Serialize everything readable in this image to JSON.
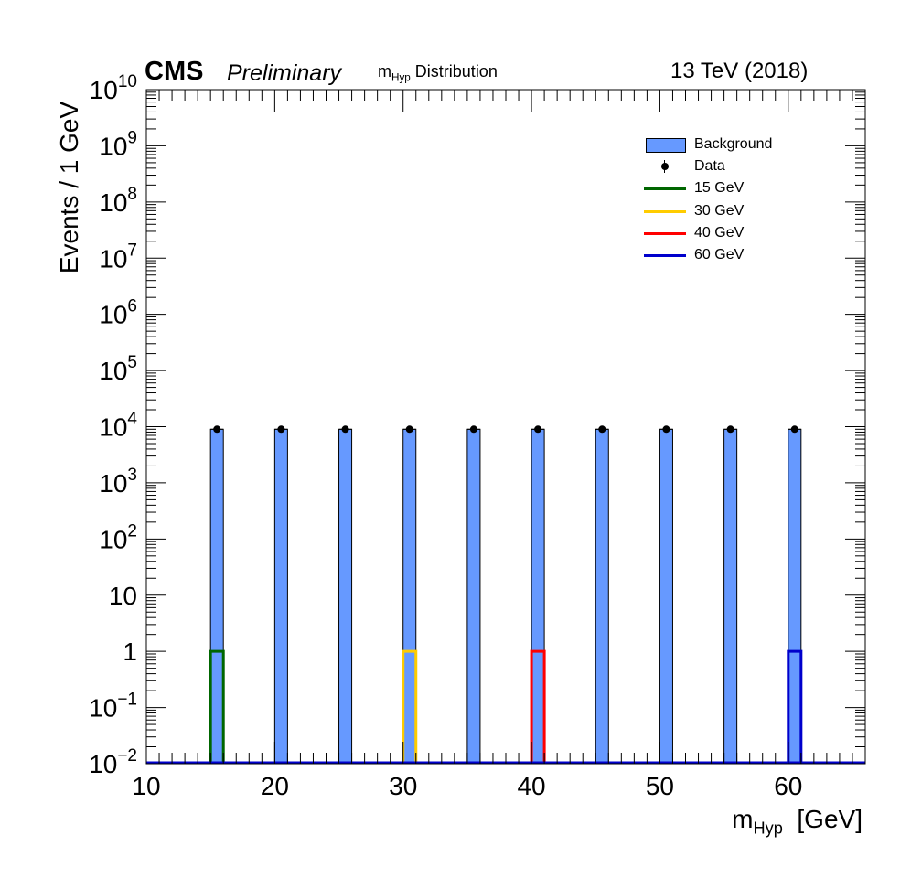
{
  "header": {
    "experiment": "CMS",
    "status": "Preliminary",
    "title_main": "m",
    "title_sub": "Hyp",
    "title_rest": " Distribution",
    "energy": "13 TeV (2018)"
  },
  "legend": {
    "background": "Background",
    "data": "Data",
    "signals": [
      "15 GeV",
      "30 GeV",
      "40 GeV",
      "60 GeV"
    ]
  },
  "colors": {
    "background": "#6699ff",
    "signal_15": "#006600",
    "signal_30": "#ffcc00",
    "signal_40": "#ff0000",
    "signal_60": "#0000cc"
  },
  "chart_data": {
    "type": "bar",
    "title": "m_Hyp Distribution",
    "xlabel_main": "m",
    "xlabel_sub": "Hyp",
    "xlabel_unit": "[GeV]",
    "ylabel": "Events / 1 GeV",
    "xlim": [
      10,
      66
    ],
    "ylim": [
      0.01,
      10000000000
    ],
    "yscale": "log",
    "bin_width": 1,
    "x_ticks": [
      10,
      20,
      30,
      40,
      50,
      60
    ],
    "y_ticks": [
      {
        "value": 0.01,
        "base": "10",
        "exp": "−2"
      },
      {
        "value": 0.1,
        "base": "10",
        "exp": "−1"
      },
      {
        "value": 1,
        "base": "1",
        "exp": ""
      },
      {
        "value": 10,
        "base": "10",
        "exp": ""
      },
      {
        "value": 100,
        "base": "10",
        "exp": "2"
      },
      {
        "value": 1000,
        "base": "10",
        "exp": "3"
      },
      {
        "value": 10000,
        "base": "10",
        "exp": "4"
      },
      {
        "value": 100000,
        "base": "10",
        "exp": "5"
      },
      {
        "value": 1000000,
        "base": "10",
        "exp": "6"
      },
      {
        "value": 10000000,
        "base": "10",
        "exp": "7"
      },
      {
        "value": 100000000,
        "base": "10",
        "exp": "8"
      },
      {
        "value": 1000000000,
        "base": "10",
        "exp": "9"
      },
      {
        "value": 10000000000,
        "base": "10",
        "exp": "10"
      }
    ],
    "background": {
      "name": "Background",
      "bins": [
        {
          "low": 15,
          "value": 9000
        },
        {
          "low": 20,
          "value": 9000
        },
        {
          "low": 25,
          "value": 9000
        },
        {
          "low": 30,
          "value": 9000
        },
        {
          "low": 35,
          "value": 9000
        },
        {
          "low": 40,
          "value": 9000
        },
        {
          "low": 45,
          "value": 9000
        },
        {
          "low": 50,
          "value": 9000
        },
        {
          "low": 55,
          "value": 9000
        },
        {
          "low": 60,
          "value": 9000
        }
      ]
    },
    "data": {
      "name": "Data",
      "points": [
        {
          "x": 15.5,
          "y": 9000
        },
        {
          "x": 20.5,
          "y": 9000
        },
        {
          "x": 25.5,
          "y": 9000
        },
        {
          "x": 30.5,
          "y": 9000
        },
        {
          "x": 35.5,
          "y": 9000
        },
        {
          "x": 40.5,
          "y": 9000
        },
        {
          "x": 45.5,
          "y": 9000
        },
        {
          "x": 50.5,
          "y": 9000
        },
        {
          "x": 55.5,
          "y": 9000
        },
        {
          "x": 60.5,
          "y": 9000
        }
      ]
    },
    "signals": [
      {
        "name": "15 GeV",
        "color": "#006600",
        "bin_low": 15,
        "value": 1
      },
      {
        "name": "30 GeV",
        "color": "#ffcc00",
        "bin_low": 30,
        "value": 1
      },
      {
        "name": "40 GeV",
        "color": "#ff0000",
        "bin_low": 40,
        "value": 1
      },
      {
        "name": "60 GeV",
        "color": "#0000cc",
        "bin_low": 60,
        "value": 1
      }
    ]
  }
}
